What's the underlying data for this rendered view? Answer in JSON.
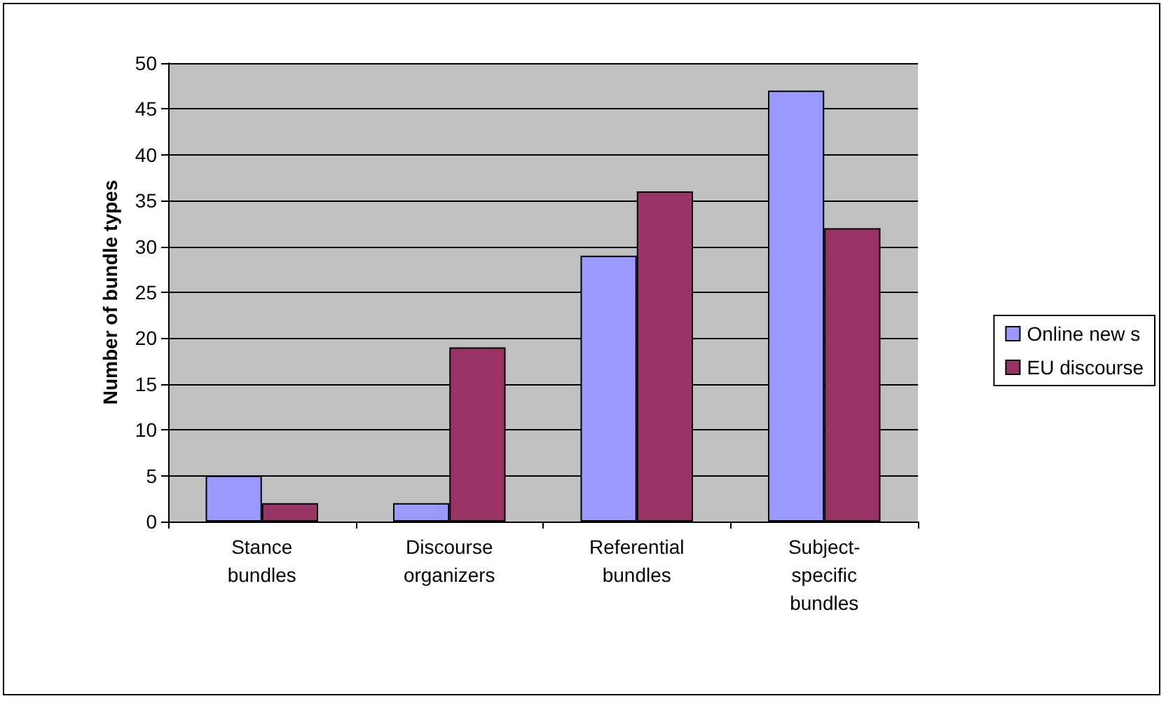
{
  "chart_data": {
    "type": "bar",
    "ylabel": "Number of bundle types",
    "categories": [
      "Stance bundles",
      "Discourse organizers",
      "Referential bundles",
      "Subject-specific bundles"
    ],
    "series": [
      {
        "name": "Online new s",
        "color": "#9999ff",
        "values": [
          5,
          2,
          29,
          47
        ]
      },
      {
        "name": "EU discourse",
        "color": "#993366",
        "values": [
          2,
          19,
          36,
          32
        ]
      }
    ],
    "ylim": [
      0,
      50
    ],
    "yticks": [
      0,
      5,
      10,
      15,
      20,
      25,
      30,
      35,
      40,
      45,
      50
    ],
    "grid": "y",
    "legend": "right"
  }
}
